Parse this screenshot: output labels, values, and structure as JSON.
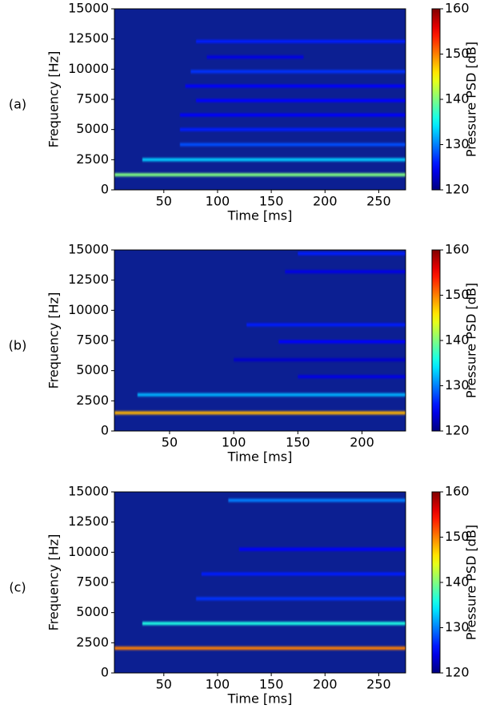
{
  "chart_data": [
    {
      "type": "spectrogram",
      "label": "(a)",
      "xlabel": "Time [ms]",
      "ylabel": "Frequency [Hz]",
      "colorbar_label": "Pressure PSD [dB]",
      "xlim": [
        4,
        275
      ],
      "xticks": [
        50,
        100,
        150,
        200,
        250
      ],
      "ylim": [
        0,
        15000
      ],
      "yticks": [
        0,
        2500,
        5000,
        7500,
        10000,
        12500,
        15000
      ],
      "clim": [
        120,
        160
      ],
      "cticks": [
        120,
        130,
        140,
        150,
        160
      ],
      "colormap": "jet",
      "background": "#0c1f92",
      "bands": [
        {
          "frequency": 1250,
          "start": 4,
          "end": 275,
          "level": 140
        },
        {
          "frequency": 2500,
          "start": 30,
          "end": 275,
          "level": 133
        },
        {
          "frequency": 3750,
          "start": 65,
          "end": 275,
          "level": 128
        },
        {
          "frequency": 5000,
          "start": 65,
          "end": 275,
          "level": 126
        },
        {
          "frequency": 6200,
          "start": 65,
          "end": 275,
          "level": 125
        },
        {
          "frequency": 7400,
          "start": 80,
          "end": 275,
          "level": 125
        },
        {
          "frequency": 8600,
          "start": 70,
          "end": 275,
          "level": 125
        },
        {
          "frequency": 9800,
          "start": 75,
          "end": 275,
          "level": 127
        },
        {
          "frequency": 11000,
          "start": 90,
          "end": 180,
          "level": 124
        },
        {
          "frequency": 12300,
          "start": 80,
          "end": 275,
          "level": 126
        }
      ]
    },
    {
      "type": "spectrogram",
      "label": "(b)",
      "xlabel": "Time [ms]",
      "ylabel": "Frequency [Hz]",
      "colorbar_label": "Pressure PSD [dB]",
      "xlim": [
        7,
        234
      ],
      "xticks": [
        50,
        100,
        150,
        200
      ],
      "ylim": [
        0,
        15000
      ],
      "yticks": [
        0,
        2500,
        5000,
        7500,
        10000,
        12500,
        15000
      ],
      "clim": [
        120,
        160
      ],
      "cticks": [
        120,
        130,
        140,
        150,
        160
      ],
      "colormap": "jet",
      "background": "#0c1f92",
      "bands": [
        {
          "frequency": 1500,
          "start": 7,
          "end": 234,
          "level": 148
        },
        {
          "frequency": 3000,
          "start": 25,
          "end": 234,
          "level": 132
        },
        {
          "frequency": 4500,
          "start": 150,
          "end": 234,
          "level": 124
        },
        {
          "frequency": 5900,
          "start": 100,
          "end": 234,
          "level": 123
        },
        {
          "frequency": 7400,
          "start": 135,
          "end": 234,
          "level": 125
        },
        {
          "frequency": 8800,
          "start": 110,
          "end": 234,
          "level": 126
        },
        {
          "frequency": 13200,
          "start": 140,
          "end": 234,
          "level": 124
        },
        {
          "frequency": 14700,
          "start": 150,
          "end": 234,
          "level": 126
        }
      ]
    },
    {
      "type": "spectrogram",
      "label": "(c)",
      "xlabel": "Time [ms]",
      "ylabel": "Frequency [Hz]",
      "colorbar_label": "Pressure PSD [dB]",
      "xlim": [
        4,
        275
      ],
      "xticks": [
        50,
        100,
        150,
        200,
        250
      ],
      "ylim": [
        0,
        15000
      ],
      "yticks": [
        0,
        2500,
        5000,
        7500,
        10000,
        12500,
        15000
      ],
      "clim": [
        120,
        160
      ],
      "cticks": [
        120,
        130,
        140,
        150,
        160
      ],
      "colormap": "jet",
      "background": "#0c1f92",
      "bands": [
        {
          "frequency": 2050,
          "start": 4,
          "end": 275,
          "level": 150
        },
        {
          "frequency": 4100,
          "start": 30,
          "end": 275,
          "level": 136
        },
        {
          "frequency": 6150,
          "start": 80,
          "end": 275,
          "level": 127
        },
        {
          "frequency": 8200,
          "start": 85,
          "end": 275,
          "level": 126
        },
        {
          "frequency": 10250,
          "start": 120,
          "end": 275,
          "level": 125
        },
        {
          "frequency": 14300,
          "start": 110,
          "end": 275,
          "level": 130
        }
      ]
    }
  ]
}
